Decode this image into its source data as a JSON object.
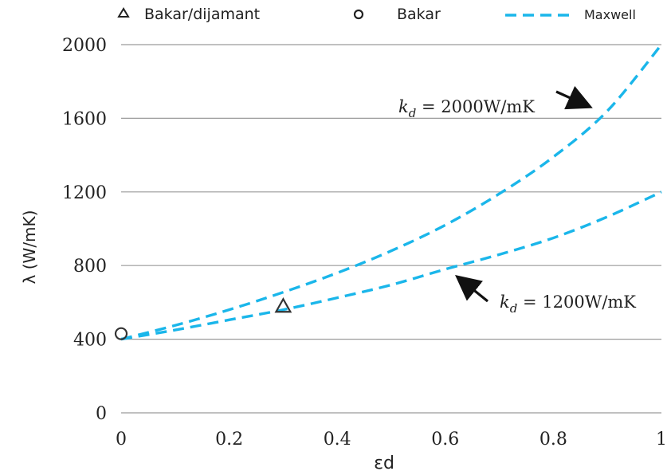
{
  "chart_data": {
    "type": "line",
    "xlabel": "εd",
    "ylabel": "λ (W/mK)",
    "xlim": [
      0,
      1
    ],
    "ylim": [
      0,
      2000
    ],
    "x_ticks": [
      "0",
      "0.2",
      "0.4",
      "0.6",
      "0.8",
      "1"
    ],
    "y_ticks": [
      "0",
      "400",
      "800",
      "1200",
      "1600",
      "2000"
    ],
    "grid": "horizontal",
    "legend_position": "top",
    "legend": [
      {
        "label": "Bakar/dijamant",
        "marker": "triangle"
      },
      {
        "label": "Bakar",
        "marker": "circle"
      },
      {
        "label": "Maxwell",
        "marker": "dashed-line"
      }
    ],
    "series": [
      {
        "name": "Maxwell",
        "style": "dashed",
        "color": "#1ab6ea",
        "x": [
          0,
          0.1,
          0.2,
          0.3,
          0.4,
          0.5,
          0.6,
          0.7,
          0.8,
          0.9,
          1.0
        ],
        "values": [
          400,
          475,
          560,
          655,
          760,
          880,
          1020,
          1190,
          1390,
          1640,
          2000
        ],
        "annotation": {
          "k": "k",
          "sub": "d",
          "text": " = 2000W/mK"
        }
      },
      {
        "name": "Maxwell",
        "style": "dashed",
        "color": "#1ab6ea",
        "x": [
          0,
          0.1,
          0.2,
          0.3,
          0.4,
          0.5,
          0.6,
          0.7,
          0.8,
          0.9,
          1.0
        ],
        "values": [
          400,
          450,
          505,
          560,
          625,
          695,
          780,
          860,
          950,
          1065,
          1200
        ],
        "annotation": {
          "k": "k",
          "sub": "d",
          "text": " = 1200W/mK"
        }
      },
      {
        "name": "Bakar/dijamant",
        "marker": "triangle",
        "x": [
          0.3
        ],
        "values": [
          575
        ]
      },
      {
        "name": "Bakar",
        "marker": "circle",
        "x": [
          0
        ],
        "values": [
          430
        ]
      }
    ]
  }
}
